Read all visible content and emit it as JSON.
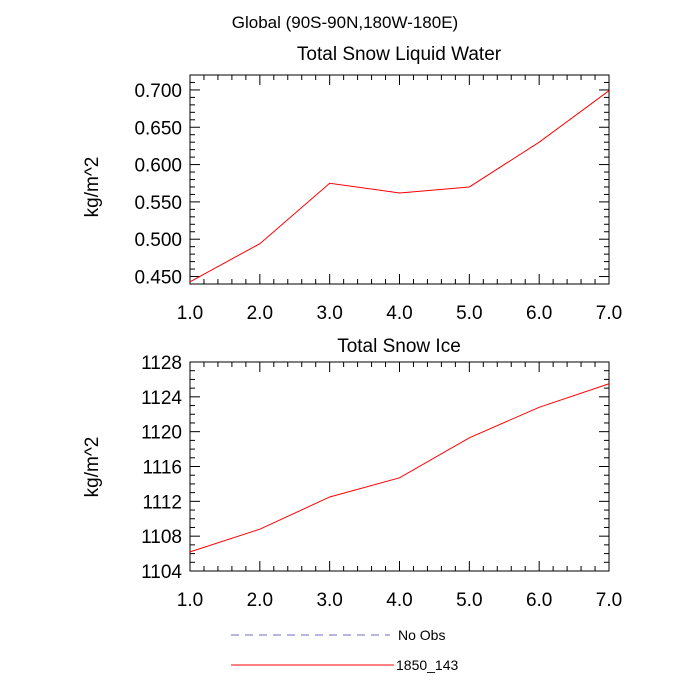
{
  "page_title": "Global (90S-90N,180W-180E)",
  "chart_data": [
    {
      "type": "line",
      "title": "Total Snow Liquid Water",
      "ylabel": "kg/m^2",
      "xlabel": "",
      "xlim": [
        1.0,
        7.0
      ],
      "ylim": [
        0.44,
        0.72
      ],
      "xticks": [
        "1.0",
        "2.0",
        "3.0",
        "4.0",
        "5.0",
        "6.0",
        "7.0"
      ],
      "yticks": [
        "0.450",
        "0.500",
        "0.550",
        "0.600",
        "0.650",
        "0.700"
      ],
      "series": [
        {
          "name": "1850_143",
          "color": "#ff0000",
          "x": [
            1,
            2,
            3,
            4,
            5,
            6,
            7
          ],
          "y": [
            0.443,
            0.494,
            0.575,
            0.562,
            0.57,
            0.63,
            0.699
          ]
        }
      ]
    },
    {
      "type": "line",
      "title": "Total Snow Ice",
      "ylabel": "kg/m^2",
      "xlabel": "",
      "xlim": [
        1.0,
        7.0
      ],
      "ylim": [
        1104,
        1128
      ],
      "xticks": [
        "1.0",
        "2.0",
        "3.0",
        "4.0",
        "5.0",
        "6.0",
        "7.0"
      ],
      "yticks": [
        "1104",
        "1108",
        "1112",
        "1116",
        "1120",
        "1124",
        "1128"
      ],
      "series": [
        {
          "name": "1850_143",
          "color": "#ff0000",
          "x": [
            1,
            2,
            3,
            4,
            5,
            6,
            7
          ],
          "y": [
            1106.2,
            1108.8,
            1112.5,
            1114.7,
            1119.3,
            1122.8,
            1125.5
          ]
        }
      ]
    }
  ],
  "legend": {
    "items": [
      {
        "label": "No Obs",
        "color": "#6b6bbf",
        "style": "dashed"
      },
      {
        "label": "1850_143",
        "color": "#ff0000",
        "style": "solid"
      }
    ]
  }
}
